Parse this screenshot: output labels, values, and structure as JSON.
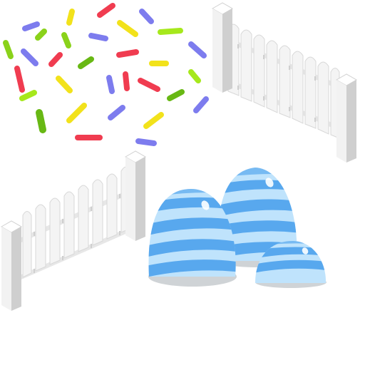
{
  "scene": {
    "background_color": "#ffffff",
    "assets": [
      "sprinkles",
      "picket-fence-right",
      "picket-fence-left",
      "striped-jelly-domes"
    ]
  },
  "colors": {
    "sprinkle_red": "#f03c50",
    "sprinkle_yellow": "#f2e21b",
    "sprinkle_green": "#8ad21a",
    "sprinkle_lime": "#a6e81c",
    "sprinkle_purple": "#7d7cee",
    "sprinkle_dark_green": "#68b814",
    "fence_light": "#ffffff",
    "fence_mid": "#ececec",
    "fence_shade": "#d4d4d4",
    "fence_dark": "#bdbdbd",
    "dome_light_blue": "#bfe3fc",
    "dome_stripe_blue": "#58a8ee",
    "dome_shadow": "#cfd3d6"
  },
  "fences": [
    {
      "name": "right-fence",
      "pickets": 9
    },
    {
      "name": "left-fence",
      "pickets": 9
    }
  ],
  "domes": [
    {
      "name": "large-dome",
      "stripes": 5
    },
    {
      "name": "medium-dome",
      "stripes": 5
    },
    {
      "name": "small-dome",
      "stripes": 3
    }
  ]
}
